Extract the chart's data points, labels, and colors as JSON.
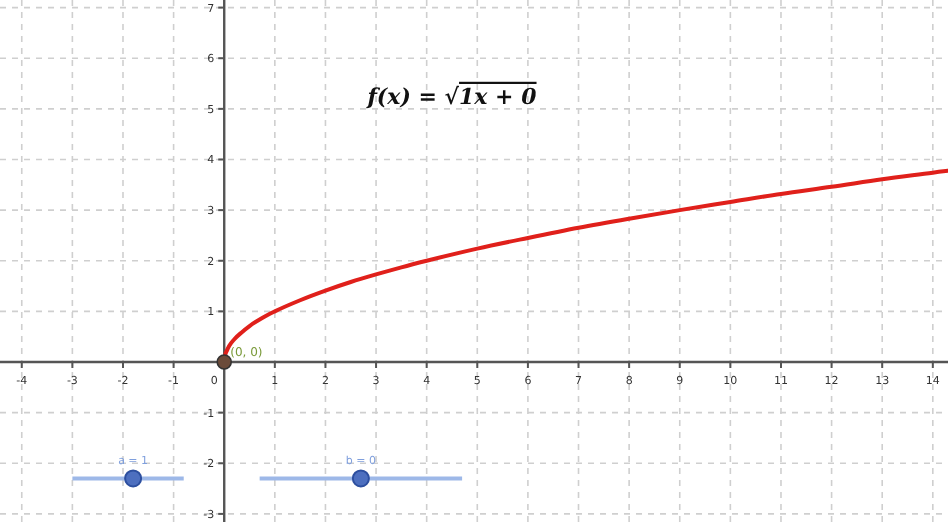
{
  "chart_data": {
    "type": "line",
    "title": "f(x) = √1x + 0",
    "xlim": [
      -4.43,
      14.3
    ],
    "ylim": [
      -3.16,
      7.15
    ],
    "xticks": [
      -4,
      -3,
      -2,
      -1,
      0,
      1,
      2,
      3,
      4,
      5,
      6,
      7,
      8,
      9,
      10,
      11,
      12,
      13,
      14
    ],
    "yticks": [
      -3,
      -2,
      -1,
      1,
      2,
      3,
      4,
      5,
      6,
      7
    ],
    "grid": true,
    "series": [
      {
        "color": "#e0201b",
        "marker": "none",
        "x": [
          0,
          0.02,
          0.05,
          0.1,
          0.2,
          0.35,
          0.5,
          0.75,
          1,
          1.5,
          2,
          2.5,
          3,
          3.5,
          4,
          5,
          6,
          7,
          8,
          9,
          10,
          11,
          12,
          13,
          14,
          14.3
        ],
        "values": [
          0,
          0.14,
          0.22,
          0.32,
          0.45,
          0.59,
          0.71,
          0.87,
          1,
          1.22,
          1.41,
          1.58,
          1.73,
          1.87,
          2,
          2.24,
          2.45,
          2.65,
          2.83,
          3,
          3.16,
          3.32,
          3.46,
          3.61,
          3.74,
          3.78
        ]
      },
      {
        "type": "scatter",
        "color": "#6b4b3a",
        "marker": "circle",
        "x": [
          0
        ],
        "values": [
          0
        ]
      }
    ],
    "annotations": [
      {
        "text": "(0, 0)",
        "x": 0,
        "y": 0
      },
      "a = 1",
      "b = 0"
    ]
  }
}
